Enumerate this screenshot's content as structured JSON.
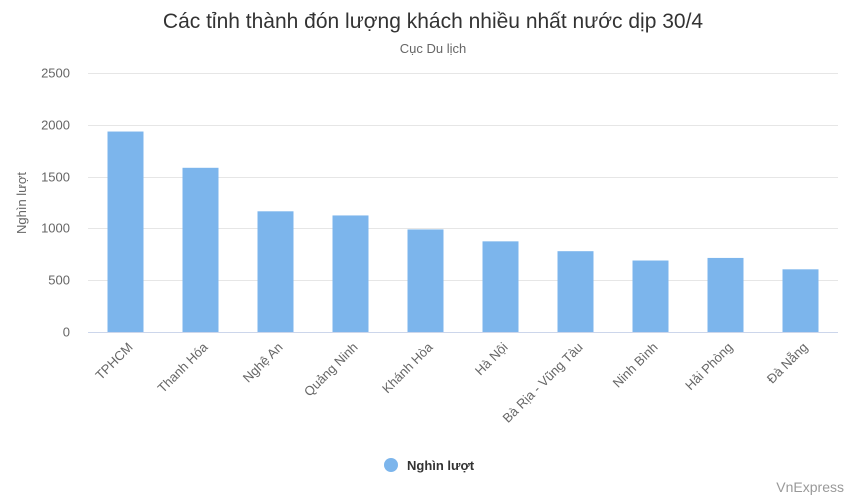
{
  "chart_data": {
    "type": "bar",
    "title": "Các tỉnh thành đón lượng khách nhiều nhất nước dịp 30/4",
    "subtitle": "Cục Du lịch",
    "ylabel": "Nghìn lượt",
    "ylim": [
      0,
      2500
    ],
    "yticks": [
      "0",
      "500",
      "1000",
      "1500",
      "2000",
      "2500"
    ],
    "categories": [
      "TPHCM",
      "Thanh Hóa",
      "Nghệ An",
      "Quảng Ninh",
      "Khánh Hòa",
      "Hà Nội",
      "Bà Rịa - Vũng Tàu",
      "Ninh Bình",
      "Hải Phòng",
      "Đà Nẵng"
    ],
    "series": [
      {
        "name": "Nghìn lượt",
        "values": [
          1935,
          1585,
          1165,
          1125,
          990,
          875,
          780,
          690,
          715,
          605
        ]
      }
    ],
    "grid": true,
    "legend": "bottom-center",
    "colors": {
      "bar": "#7cb5ec",
      "grid": "#e6e6e6",
      "axis": "#ccd6eb"
    },
    "credit": "VnExpress"
  }
}
